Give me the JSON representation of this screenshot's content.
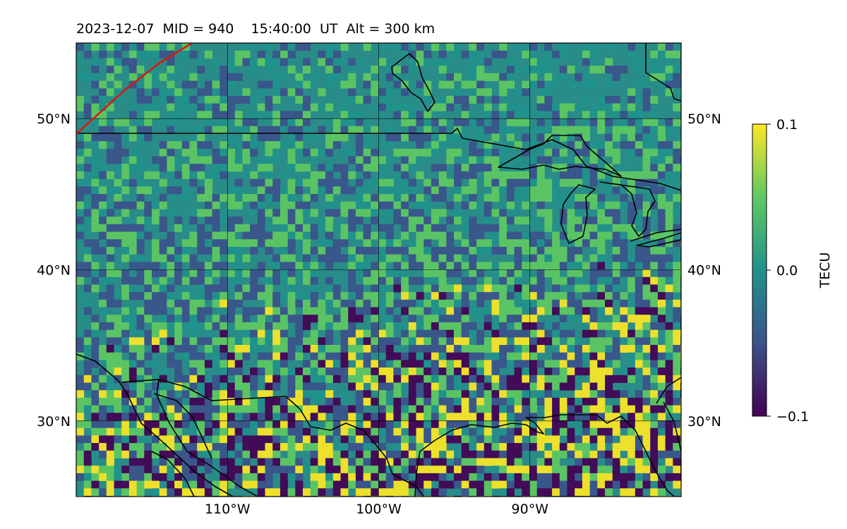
{
  "title": "2023-12-07  MID = 940    15:40:00  UT  Alt = 300 km",
  "map": {
    "lat_range": [
      25,
      55
    ],
    "lon_range": [
      -120,
      -80
    ],
    "lat_ticks": [
      {
        "value": 50,
        "label": "50°N"
      },
      {
        "value": 40,
        "label": "40°N"
      },
      {
        "value": 30,
        "label": "30°N"
      }
    ],
    "lon_ticks": [
      {
        "value": -110,
        "label": "110°W"
      },
      {
        "value": -100,
        "label": "100°W"
      },
      {
        "value": -90,
        "label": "90°W"
      }
    ],
    "grid": true
  },
  "colorbar": {
    "label": "TECU",
    "min": -0.1,
    "max": 0.1,
    "ticks": [
      {
        "value": 0.1,
        "label": "0.1"
      },
      {
        "value": 0.0,
        "label": "0.0"
      },
      {
        "value": -0.1,
        "label": "−0.1"
      }
    ],
    "colormap": [
      "#440154",
      "#3b528b",
      "#21918c",
      "#5ec962",
      "#fde725"
    ]
  },
  "colors": {
    "track_line": "#e0150c",
    "coastline": "#000000",
    "background_field": "#2a8c88"
  }
}
